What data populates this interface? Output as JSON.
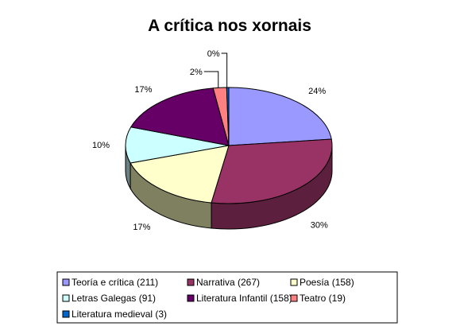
{
  "chart_data": {
    "type": "pie",
    "title": "A crítica nos xornais",
    "three_d": true,
    "legend_position": "bottom",
    "slices": [
      {
        "label": "Teoría e crítica",
        "value": 211,
        "percent_label": "24%",
        "color": "#9999FF",
        "side_color": "#5c5c99"
      },
      {
        "label": "Narrativa",
        "value": 267,
        "percent_label": "30%",
        "color": "#993366",
        "side_color": "#5c1f3d"
      },
      {
        "label": "Poesía",
        "value": 158,
        "percent_label": "17%",
        "color": "#FFFFCC",
        "side_color": "#7f8060"
      },
      {
        "label": "Letras Galegas",
        "value": 91,
        "percent_label": "10%",
        "color": "#CCFFFF",
        "side_color": "#6b8080"
      },
      {
        "label": "Literatura Infantil",
        "value": 158,
        "percent_label": "17%",
        "color": "#660066",
        "side_color": "#3d003d"
      },
      {
        "label": "Teatro",
        "value": 19,
        "percent_label": "2%",
        "color": "#FF8080",
        "side_color": "#994d4d"
      },
      {
        "label": "Literatura medieval",
        "value": 3,
        "percent_label": "0%",
        "color": "#0066CC",
        "side_color": "#003d7a"
      }
    ],
    "legend_entries": [
      "Teoría e crítica  (211)",
      "Narrativa  (267)",
      "Poesía  (158)",
      "Letras Galegas  (91)",
      "Literatura Infantil  (158)",
      "Teatro  (19)",
      "Literatura medieval  (3)"
    ]
  }
}
